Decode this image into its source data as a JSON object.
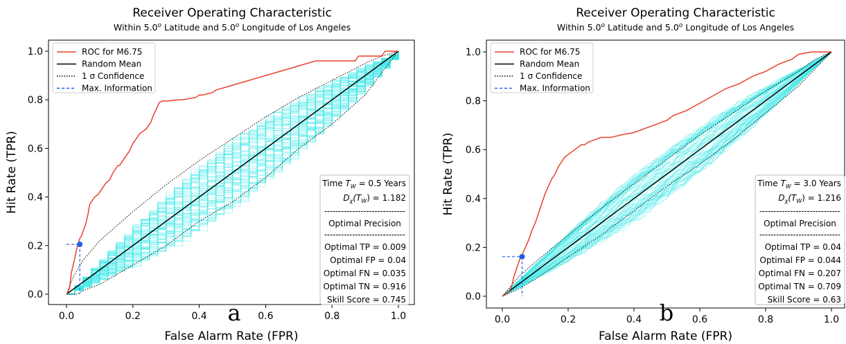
{
  "chart_data": [
    {
      "type": "line",
      "panel_label": "a",
      "title": "Receiver Operating Characteristic",
      "subtitle_pre": "Within 5.0",
      "subtitle_mid": " Latitude and 5.0",
      "subtitle_post": " Longitude of Los Angeles",
      "subtitle_sup": "o",
      "xlabel": "False Alarm Rate (FPR)",
      "ylabel": "Hit Rate (TPR)",
      "xlim": [
        0,
        1
      ],
      "ylim": [
        0,
        1
      ],
      "xticks": [
        "0.0",
        "0.2",
        "0.4",
        "0.6",
        "0.8",
        "1.0"
      ],
      "yticks": [
        "0.0",
        "0.2",
        "0.4",
        "0.6",
        "0.8",
        "1.0"
      ],
      "grid": false,
      "legend_position": "top-left",
      "legend": [
        {
          "label": "ROC for M6.75",
          "color": "#e8412c",
          "style": "solid"
        },
        {
          "label": "Random Mean",
          "color": "#000000",
          "style": "solid"
        },
        {
          "label": "1 σ Confidence",
          "color": "#000000",
          "style": "dotted"
        },
        {
          "label": "Max. Information",
          "color": "#1f5ee8",
          "style": "dashed"
        }
      ],
      "roc": {
        "x": [
          0.0,
          0.005,
          0.01,
          0.012,
          0.015,
          0.02,
          0.025,
          0.03,
          0.033,
          0.036,
          0.04,
          0.045,
          0.05,
          0.058,
          0.065,
          0.07,
          0.075,
          0.08,
          0.085,
          0.095,
          0.1,
          0.105,
          0.11,
          0.115,
          0.12,
          0.13,
          0.14,
          0.145,
          0.15,
          0.155,
          0.16,
          0.17,
          0.175,
          0.18,
          0.19,
          0.2,
          0.21,
          0.22,
          0.23,
          0.24,
          0.25,
          0.255,
          0.26,
          0.27,
          0.28,
          0.29,
          0.3,
          0.34,
          0.35,
          0.39,
          0.4,
          0.41,
          0.44,
          0.45,
          0.5,
          0.55,
          0.6,
          0.65,
          0.7,
          0.75,
          0.8,
          0.87,
          0.88,
          0.95,
          0.96,
          1.0
        ],
        "y": [
          0.0,
          0.01,
          0.03,
          0.06,
          0.09,
          0.12,
          0.15,
          0.18,
          0.2,
          0.21,
          0.23,
          0.24,
          0.26,
          0.29,
          0.33,
          0.37,
          0.38,
          0.39,
          0.4,
          0.41,
          0.42,
          0.43,
          0.44,
          0.45,
          0.46,
          0.47,
          0.5,
          0.51,
          0.52,
          0.53,
          0.53,
          0.55,
          0.56,
          0.57,
          0.59,
          0.62,
          0.64,
          0.66,
          0.67,
          0.68,
          0.7,
          0.71,
          0.73,
          0.76,
          0.79,
          0.795,
          0.795,
          0.8,
          0.8,
          0.81,
          0.82,
          0.82,
          0.83,
          0.84,
          0.86,
          0.88,
          0.9,
          0.92,
          0.94,
          0.96,
          0.96,
          0.96,
          0.98,
          0.98,
          1.0,
          1.0
        ]
      },
      "random_mean": {
        "x": [
          0,
          1
        ],
        "y": [
          0,
          1
        ]
      },
      "confidence_upper": {
        "x": [
          0,
          0.02,
          0.05,
          0.1,
          0.2,
          0.3,
          0.4,
          0.5,
          0.6,
          0.7,
          0.8,
          0.9,
          0.95,
          1.0
        ],
        "y": [
          0,
          0.07,
          0.14,
          0.22,
          0.34,
          0.45,
          0.55,
          0.64,
          0.73,
          0.81,
          0.88,
          0.95,
          0.98,
          1.0
        ]
      },
      "confidence_lower": {
        "x": [
          0,
          0.03,
          0.06,
          0.1,
          0.2,
          0.3,
          0.4,
          0.5,
          0.6,
          0.7,
          0.8,
          0.9,
          0.96,
          1.0
        ],
        "y": [
          0,
          0.0,
          0.02,
          0.04,
          0.12,
          0.2,
          0.3,
          0.38,
          0.48,
          0.6,
          0.7,
          0.82,
          0.93,
          1.0
        ]
      },
      "max_information": {
        "fpr": 0.04,
        "tpr": 0.205
      },
      "info_box": {
        "time_prefix": "Time ",
        "time_var": "T",
        "time_sub": "W",
        "time_suffix": " = 0.5 Years",
        "dx_var": "D",
        "dx_sub": "χ",
        "dx_paren": "(T",
        "dx_paren_sub": "W",
        "dx_suffix": ") = 1.182",
        "separator": "-----------------------------",
        "precision_label": "Optimal Precision",
        "rows": [
          "Optimal TP = 0.009",
          "Optimal FP = 0.04",
          "Optimal FN = 0.035",
          "Optimal TN = 0.916",
          "Skill Score = 0.745"
        ]
      },
      "random_band": {
        "seed": 11,
        "count": 70,
        "mode": "steps",
        "spread": 0.09
      }
    },
    {
      "type": "line",
      "panel_label": "b",
      "title": "Receiver Operating Characteristic",
      "subtitle_pre": "Within 5.0",
      "subtitle_mid": " Latitude and 5.0",
      "subtitle_post": " Longitude of Los Angeles",
      "subtitle_sup": "o",
      "xlabel": "False Alarm Rate (FPR)",
      "ylabel": "Hit Rate (TPR)",
      "xlim": [
        0,
        1
      ],
      "ylim": [
        0,
        1
      ],
      "xticks": [
        "0.0",
        "0.2",
        "0.4",
        "0.6",
        "0.8",
        "1.0"
      ],
      "yticks": [
        "0.0",
        "0.2",
        "0.4",
        "0.6",
        "0.8",
        "1.0"
      ],
      "grid": false,
      "legend_position": "top-left",
      "legend": [
        {
          "label": "ROC for M6.75",
          "color": "#e8412c",
          "style": "solid"
        },
        {
          "label": "Random Mean",
          "color": "#000000",
          "style": "solid"
        },
        {
          "label": "1 σ Confidence",
          "color": "#000000",
          "style": "dotted"
        },
        {
          "label": "Max. Information",
          "color": "#1f5ee8",
          "style": "dashed"
        }
      ],
      "roc": {
        "x": [
          0.0,
          0.01,
          0.02,
          0.025,
          0.03,
          0.035,
          0.04,
          0.045,
          0.05,
          0.055,
          0.06,
          0.07,
          0.08,
          0.09,
          0.1,
          0.11,
          0.12,
          0.13,
          0.14,
          0.15,
          0.16,
          0.17,
          0.18,
          0.19,
          0.2,
          0.21,
          0.22,
          0.23,
          0.24,
          0.25,
          0.26,
          0.28,
          0.3,
          0.33,
          0.36,
          0.4,
          0.44,
          0.48,
          0.5,
          0.52,
          0.56,
          0.6,
          0.64,
          0.68,
          0.72,
          0.76,
          0.8,
          0.84,
          0.88,
          0.9,
          0.94,
          0.98,
          1.0
        ],
        "y": [
          0.0,
          0.01,
          0.02,
          0.03,
          0.05,
          0.08,
          0.1,
          0.12,
          0.14,
          0.16,
          0.17,
          0.2,
          0.23,
          0.27,
          0.3,
          0.34,
          0.38,
          0.42,
          0.45,
          0.48,
          0.5,
          0.53,
          0.55,
          0.57,
          0.58,
          0.59,
          0.6,
          0.61,
          0.62,
          0.62,
          0.63,
          0.64,
          0.65,
          0.65,
          0.66,
          0.67,
          0.69,
          0.71,
          0.72,
          0.74,
          0.76,
          0.79,
          0.82,
          0.85,
          0.87,
          0.9,
          0.92,
          0.95,
          0.97,
          0.99,
          1.0,
          1.0,
          1.0
        ]
      },
      "random_mean": {
        "x": [
          0,
          1
        ],
        "y": [
          0,
          1
        ]
      },
      "confidence_upper": {
        "x": [
          0,
          0.05,
          0.1,
          0.2,
          0.3,
          0.4,
          0.5,
          0.6,
          0.7,
          0.8,
          0.9,
          0.95,
          1.0
        ],
        "y": [
          0,
          0.08,
          0.14,
          0.25,
          0.36,
          0.46,
          0.56,
          0.66,
          0.75,
          0.84,
          0.92,
          0.97,
          1.0
        ]
      },
      "confidence_lower": {
        "x": [
          0,
          0.05,
          0.1,
          0.2,
          0.3,
          0.4,
          0.5,
          0.6,
          0.7,
          0.8,
          0.9,
          0.95,
          1.0
        ],
        "y": [
          0,
          0.03,
          0.07,
          0.16,
          0.25,
          0.35,
          0.45,
          0.54,
          0.64,
          0.75,
          0.86,
          0.93,
          1.0
        ]
      },
      "max_information": {
        "fpr": 0.06,
        "tpr": 0.162
      },
      "info_box": {
        "time_prefix": "Time ",
        "time_var": "T",
        "time_sub": "W",
        "time_suffix": " = 3.0 Years",
        "dx_var": "D",
        "dx_sub": "χ",
        "dx_paren": "(T",
        "dx_paren_sub": "W",
        "dx_suffix": ") = 1.216",
        "separator": "-----------------------------",
        "precision_label": "Optimal Precision",
        "rows": [
          "Optimal TP = 0.04",
          "Optimal FP = 0.044",
          "Optimal FN = 0.207",
          "Optimal TN = 0.709",
          "Skill Score = 0.63"
        ]
      },
      "random_band": {
        "seed": 23,
        "count": 70,
        "mode": "smooth",
        "spread": 0.06
      }
    }
  ],
  "colors": {
    "roc": "#e8412c",
    "random": "#000000",
    "band": "#3ee8e8",
    "max_info": "#1f5ee8"
  }
}
